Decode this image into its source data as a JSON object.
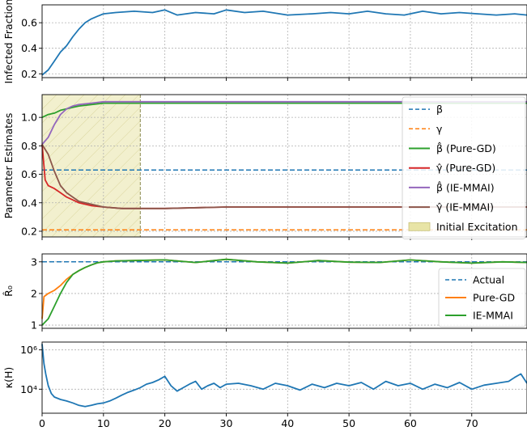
{
  "chart_data": [
    {
      "type": "line",
      "ylabel": "Infected Fraction",
      "xlim": [
        0,
        79
      ],
      "ylim": [
        0.17,
        0.74
      ],
      "yticks": [
        "0.2",
        "0.4",
        "0.6"
      ],
      "ytick_values": [
        0.2,
        0.4,
        0.6
      ],
      "grid": true,
      "series": [
        {
          "color": "#1f77b4",
          "x": [
            0,
            1,
            2,
            3,
            4,
            5,
            6,
            7,
            8,
            9,
            10,
            12,
            15,
            18,
            20,
            22,
            25,
            28,
            30,
            33,
            36,
            40,
            44,
            47,
            50,
            53,
            56,
            59,
            62,
            65,
            68,
            71,
            74,
            77,
            79
          ],
          "y": [
            0.19,
            0.23,
            0.3,
            0.37,
            0.42,
            0.49,
            0.55,
            0.6,
            0.63,
            0.65,
            0.67,
            0.68,
            0.69,
            0.68,
            0.7,
            0.66,
            0.68,
            0.67,
            0.7,
            0.68,
            0.69,
            0.66,
            0.67,
            0.68,
            0.67,
            0.69,
            0.67,
            0.66,
            0.69,
            0.67,
            0.68,
            0.67,
            0.66,
            0.67,
            0.66
          ]
        }
      ]
    },
    {
      "type": "line",
      "ylabel": "Parameter Estimates",
      "xlim": [
        0,
        79
      ],
      "ylim": [
        0.16,
        1.16
      ],
      "yticks": [
        "0.2",
        "0.4",
        "0.6",
        "0.8",
        "1.0"
      ],
      "ytick_values": [
        0.2,
        0.4,
        0.6,
        0.8,
        1.0
      ],
      "grid": true,
      "legend_position": "right",
      "shaded_region": {
        "x_start": 0,
        "x_end": 16,
        "label": "Initial Excitation",
        "color": "#e8e4a6"
      },
      "series": [
        {
          "name": "β",
          "legend_text": "β",
          "style": "dashed",
          "color": "#1f77b4",
          "x": [
            0,
            79
          ],
          "y": [
            0.63,
            0.63
          ]
        },
        {
          "name": "γ",
          "legend_text": "γ",
          "style": "dashed",
          "color": "#ff7f0e",
          "x": [
            0,
            79
          ],
          "y": [
            0.21,
            0.21
          ]
        },
        {
          "name": "β̂ (Pure-GD)",
          "legend_text": "β̂ (Pure-GD)",
          "color": "#2ca02c",
          "x": [
            0,
            1,
            2,
            3,
            4,
            5,
            6,
            8,
            10,
            13,
            16,
            20,
            30,
            40,
            50,
            60,
            70,
            79
          ],
          "y": [
            1.0,
            1.02,
            1.03,
            1.05,
            1.06,
            1.07,
            1.08,
            1.09,
            1.1,
            1.1,
            1.1,
            1.1,
            1.1,
            1.1,
            1.1,
            1.1,
            1.1,
            1.1
          ]
        },
        {
          "name": "γ̂ (Pure-GD)",
          "legend_text": "γ̂ (Pure-GD)",
          "color": "#d62728",
          "x": [
            0,
            0.5,
            1,
            2,
            3,
            4,
            5,
            6,
            8,
            10,
            13,
            16,
            20,
            30,
            40,
            50,
            60,
            70,
            79
          ],
          "y": [
            0.81,
            0.56,
            0.52,
            0.5,
            0.47,
            0.44,
            0.42,
            0.4,
            0.38,
            0.37,
            0.36,
            0.36,
            0.36,
            0.37,
            0.37,
            0.37,
            0.37,
            0.37,
            0.37
          ]
        },
        {
          "name": "β̂ (IE-MMAI)",
          "legend_text": "β̂ (IE-MMAI)",
          "color": "#9467bd",
          "x": [
            0,
            1,
            2,
            3,
            4,
            5,
            6,
            8,
            10,
            13,
            16,
            20,
            30,
            40,
            50,
            60,
            70,
            79
          ],
          "y": [
            0.81,
            0.86,
            0.95,
            1.02,
            1.06,
            1.08,
            1.09,
            1.1,
            1.11,
            1.11,
            1.11,
            1.11,
            1.11,
            1.11,
            1.11,
            1.11,
            1.11,
            1.11
          ]
        },
        {
          "name": "γ̂ (IE-MMAI)",
          "legend_text": "γ̂ (IE-MMAI)",
          "color": "#8c564b",
          "x": [
            0,
            1,
            2,
            3,
            4,
            5,
            6,
            8,
            10,
            13,
            16,
            20,
            30,
            40,
            50,
            60,
            70,
            79
          ],
          "y": [
            0.81,
            0.74,
            0.62,
            0.52,
            0.47,
            0.44,
            0.41,
            0.39,
            0.37,
            0.36,
            0.36,
            0.36,
            0.37,
            0.37,
            0.37,
            0.37,
            0.37,
            0.37
          ]
        }
      ]
    },
    {
      "type": "line",
      "ylabel": "R̂₀",
      "xlim": [
        0,
        79
      ],
      "ylim": [
        0.9,
        3.25
      ],
      "yticks": [
        "1",
        "2",
        "3"
      ],
      "ytick_values": [
        1,
        2,
        3
      ],
      "grid": true,
      "legend_position": "right",
      "series": [
        {
          "name": "Actual",
          "legend_text": "Actual",
          "style": "dashed",
          "color": "#1f77b4",
          "x": [
            0,
            79
          ],
          "y": [
            3.0,
            3.0
          ]
        },
        {
          "name": "Pure-GD",
          "legend_text": "Pure-GD",
          "color": "#ff7f0e",
          "x": [
            0,
            0.3,
            1,
            2,
            3,
            4,
            5,
            6,
            7,
            8,
            9,
            10,
            12,
            15,
            20,
            25,
            30,
            35,
            40,
            45,
            50,
            55,
            60,
            65,
            70,
            75,
            79
          ],
          "y": [
            1.2,
            1.9,
            2.0,
            2.1,
            2.25,
            2.45,
            2.6,
            2.72,
            2.82,
            2.9,
            2.97,
            3.0,
            3.03,
            3.04,
            3.06,
            2.98,
            3.08,
            3.0,
            2.96,
            3.04,
            2.99,
            2.98,
            3.06,
            3.0,
            2.96,
            3.0,
            2.98
          ]
        },
        {
          "name": "IE-MMAI",
          "legend_text": "IE-MMAI",
          "color": "#2ca02c",
          "x": [
            0,
            1,
            2,
            3,
            4,
            5,
            6,
            7,
            8,
            9,
            10,
            12,
            15,
            20,
            25,
            30,
            35,
            40,
            45,
            50,
            55,
            60,
            65,
            70,
            75,
            79
          ],
          "y": [
            1.0,
            1.2,
            1.6,
            2.0,
            2.35,
            2.6,
            2.72,
            2.82,
            2.9,
            2.97,
            3.0,
            3.03,
            3.04,
            3.06,
            2.98,
            3.08,
            3.0,
            2.96,
            3.04,
            2.99,
            2.98,
            3.06,
            3.0,
            2.96,
            3.0,
            2.98
          ]
        }
      ]
    },
    {
      "type": "line",
      "ylabel": "κ(H)",
      "xlabel": "",
      "xlim": [
        0,
        79
      ],
      "log_scale_y": true,
      "ylim": [
        600,
        2500000
      ],
      "yticks": [
        "10⁴",
        "10⁶"
      ],
      "ytick_values": [
        10000,
        1000000
      ],
      "xticks": [
        "0",
        "10",
        "20",
        "30",
        "40",
        "50",
        "60",
        "70"
      ],
      "xtick_values": [
        0,
        10,
        20,
        30,
        40,
        50,
        60,
        70
      ],
      "grid": true,
      "series": [
        {
          "color": "#1f77b4",
          "x": [
            0,
            0.3,
            0.6,
            1,
            1.5,
            2,
            3,
            4,
            5,
            6,
            7,
            8,
            9,
            10,
            11,
            12,
            13,
            14,
            15,
            16,
            17,
            18,
            19,
            20,
            21,
            22,
            23,
            24,
            25,
            26,
            27,
            28,
            29,
            30,
            32,
            34,
            36,
            38,
            40,
            42,
            44,
            46,
            48,
            50,
            52,
            54,
            56,
            58,
            60,
            62,
            64,
            66,
            68,
            70,
            72,
            74,
            76,
            77,
            78,
            79
          ],
          "y": [
            2000000,
            200000,
            60000,
            15000,
            6000,
            4000,
            3000,
            2500,
            2000,
            1500,
            1300,
            1500,
            1800,
            2000,
            2500,
            3500,
            5000,
            7000,
            9000,
            12000,
            18000,
            22000,
            30000,
            45000,
            15000,
            8000,
            12000,
            18000,
            25000,
            10000,
            15000,
            20000,
            12000,
            18000,
            20000,
            15000,
            10000,
            20000,
            15000,
            9000,
            18000,
            12000,
            20000,
            15000,
            22000,
            10000,
            25000,
            15000,
            20000,
            10000,
            18000,
            12000,
            22000,
            10000,
            16000,
            20000,
            25000,
            40000,
            60000,
            20000
          ]
        }
      ]
    }
  ]
}
